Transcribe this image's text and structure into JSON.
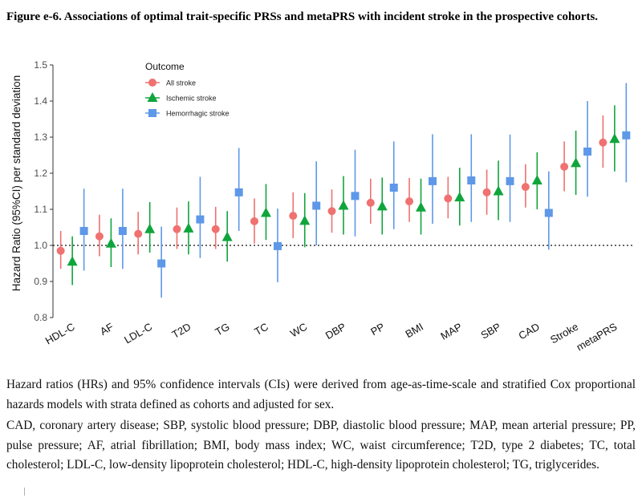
{
  "figure": {
    "title": "Figure e-6. Associations of optimal trait-specific PRSs and metaPRS with incident stroke in the prospective cohorts.",
    "caption_paragraph_1": "Hazard ratios (HRs) and 95% confidence intervals (CIs) were derived from age-as-time-scale and stratified Cox proportional hazards models with strata defined as cohorts and adjusted for sex.",
    "caption_paragraph_2": "CAD, coronary artery disease; SBP, systolic blood pressure; DBP, diastolic blood pressure; MAP, mean arterial pressure; PP, pulse pressure; AF, atrial fibrillation; BMI, body mass index; WC, waist circumference; T2D, type 2 diabetes; TC, total cholesterol; LDL-C, low-density lipoprotein cholesterol; HDL-C, high-density lipoprotein cholesterol; TG, triglycerides."
  },
  "chart_data": {
    "type": "scatter",
    "title": "",
    "xlabel": "",
    "ylabel": "Hazard Ratio (95%CI) per standard deviation",
    "ylim": [
      0.8,
      1.5
    ],
    "yticks": [
      "0.8",
      "0.9",
      "1.0",
      "1.1",
      "1.2",
      "1.3",
      "1.4",
      "1.5"
    ],
    "reference_line": 1.0,
    "grid": false,
    "legend": {
      "title": "Outcome",
      "position": "top-left"
    },
    "categories": [
      "HDL-C",
      "AF",
      "LDL-C",
      "T2D",
      "TG",
      "TC",
      "WC",
      "DBP",
      "PP",
      "BMI",
      "MAP",
      "SBP",
      "CAD",
      "Stroke",
      "metaPRS"
    ],
    "series": [
      {
        "name": "All stroke",
        "marker": "circle",
        "color": "#EF7170",
        "values": [
          0.985,
          1.025,
          1.032,
          1.045,
          1.045,
          1.067,
          1.082,
          1.095,
          1.118,
          1.122,
          1.13,
          1.147,
          1.162,
          1.218,
          1.285
        ],
        "lower": [
          0.935,
          0.97,
          0.975,
          0.99,
          0.99,
          1.005,
          1.02,
          1.035,
          1.06,
          1.065,
          1.075,
          1.085,
          1.105,
          1.15,
          1.215
        ],
        "upper": [
          1.04,
          1.085,
          1.093,
          1.105,
          1.107,
          1.13,
          1.147,
          1.155,
          1.185,
          1.187,
          1.19,
          1.21,
          1.225,
          1.288,
          1.36
        ]
      },
      {
        "name": "Ischemic stroke",
        "marker": "triangle",
        "color": "#10A53C",
        "values": [
          0.955,
          1.005,
          1.045,
          1.047,
          1.023,
          1.09,
          1.068,
          1.11,
          1.108,
          1.105,
          1.133,
          1.15,
          1.18,
          1.228,
          1.295
        ],
        "lower": [
          0.89,
          0.94,
          0.98,
          0.975,
          0.955,
          1.015,
          0.995,
          1.03,
          1.03,
          1.03,
          1.055,
          1.07,
          1.1,
          1.14,
          1.205
        ],
        "upper": [
          1.025,
          1.075,
          1.12,
          1.122,
          1.095,
          1.17,
          1.145,
          1.192,
          1.188,
          1.185,
          1.215,
          1.235,
          1.258,
          1.318,
          1.388
        ]
      },
      {
        "name": "Hemorrhagic stroke",
        "marker": "square",
        "color": "#5E98E8",
        "values": [
          1.04,
          1.04,
          0.95,
          1.072,
          1.147,
          0.998,
          1.11,
          1.137,
          1.16,
          1.178,
          1.18,
          1.178,
          1.09,
          1.26,
          1.305
        ],
        "lower": [
          0.93,
          0.935,
          0.855,
          0.965,
          1.04,
          0.898,
          1.0,
          1.025,
          1.045,
          1.06,
          1.065,
          1.065,
          0.988,
          1.135,
          1.175
        ],
        "upper": [
          1.157,
          1.157,
          1.052,
          1.19,
          1.27,
          1.102,
          1.233,
          1.265,
          1.288,
          1.308,
          1.308,
          1.307,
          1.205,
          1.4,
          1.45
        ]
      }
    ]
  }
}
